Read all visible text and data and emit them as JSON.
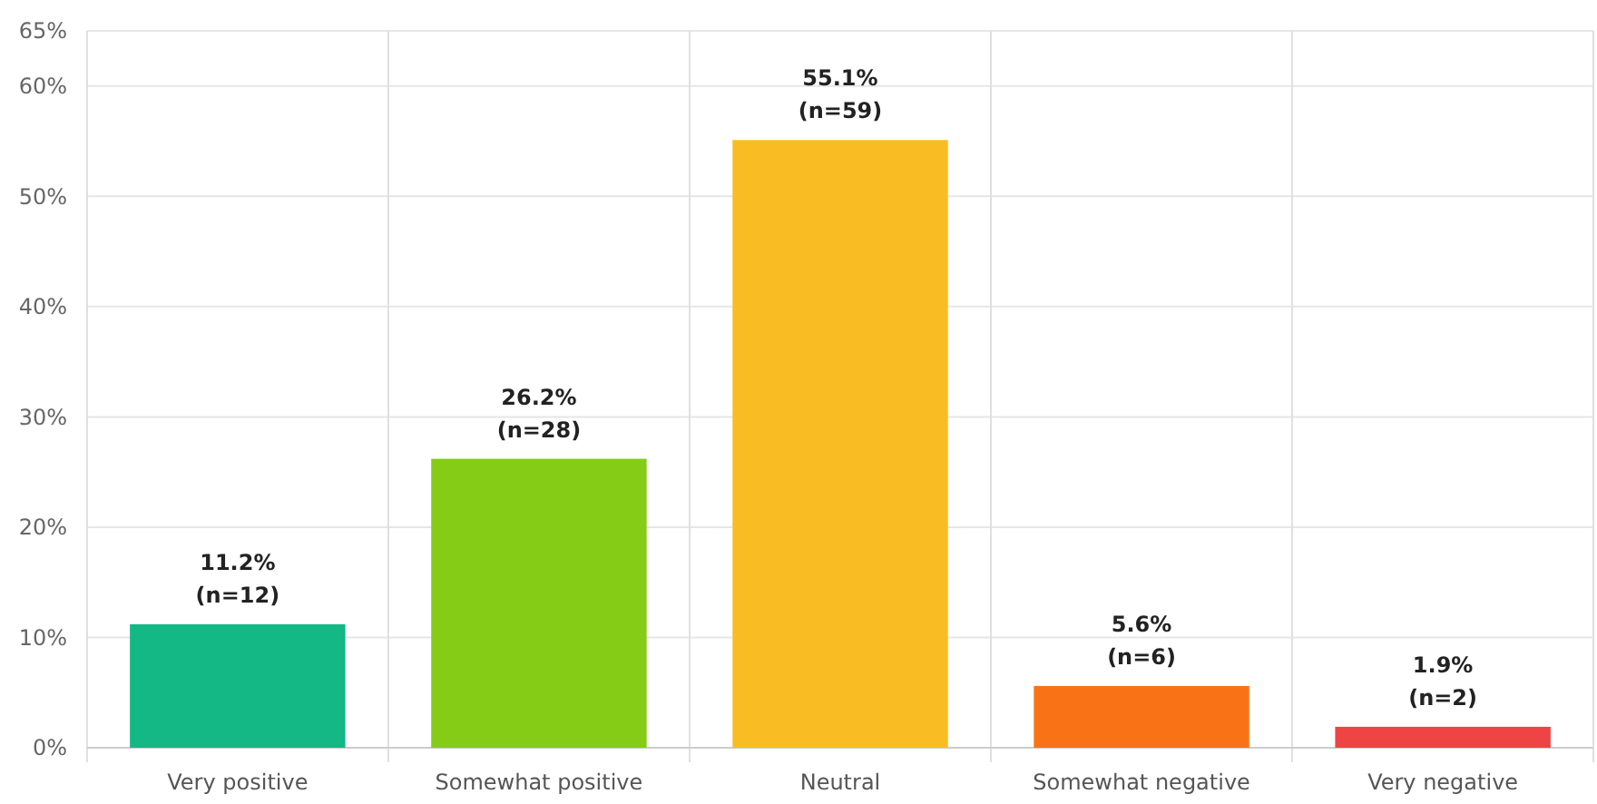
{
  "chart_data": {
    "type": "bar",
    "categories": [
      "Very positive",
      "Somewhat positive",
      "Neutral",
      "Somewhat negative",
      "Very negative"
    ],
    "values": [
      11.2,
      26.2,
      55.1,
      5.6,
      1.9
    ],
    "colors": [
      "#13b884",
      "#84cc16",
      "#f9bc23",
      "#f97316",
      "#ef4444"
    ],
    "value_labels": [
      "11.2%\n(n=12)",
      "26.2%\n(n=28)",
      "55.1%\n(n=59)",
      "5.6%\n(n=6)",
      "1.9%\n(n=2)"
    ],
    "ylim": [
      0,
      65
    ],
    "yticks": [
      {
        "value": 0,
        "label": "0%"
      },
      {
        "value": 10,
        "label": "10%"
      },
      {
        "value": 20,
        "label": "20%"
      },
      {
        "value": 30,
        "label": "30%"
      },
      {
        "value": 40,
        "label": "40%"
      },
      {
        "value": 50,
        "label": "50%"
      },
      {
        "value": 60,
        "label": "60%"
      },
      {
        "value": 65,
        "label": "65%"
      }
    ],
    "grid": true
  }
}
